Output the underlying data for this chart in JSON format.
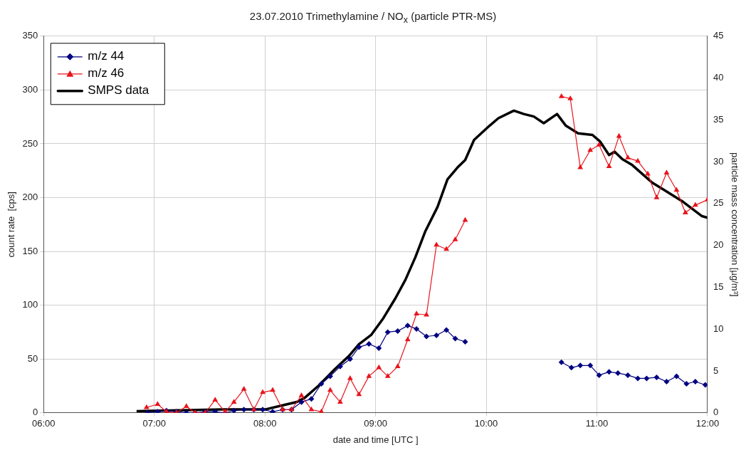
{
  "chart_data": {
    "type": "line",
    "title": "23.07.2010 Trimethylamine / NO$_{x}$ (particle PTR-MS)",
    "xlabel": "date and time [UTC ]",
    "ylabel": "count rate  [cps]",
    "y2label": "particle mass concentration [µg/m³]",
    "xlim": [
      6,
      12
    ],
    "xticks": [
      {
        "value": 6,
        "label": "06:00"
      },
      {
        "value": 7,
        "label": "07:00"
      },
      {
        "value": 8,
        "label": "08:00"
      },
      {
        "value": 9,
        "label": "09:00"
      },
      {
        "value": 10,
        "label": "10:00"
      },
      {
        "value": 11,
        "label": "11:00"
      },
      {
        "value": 12,
        "label": "12:00"
      }
    ],
    "ylim": [
      0,
      350
    ],
    "yticks": [
      0,
      50,
      100,
      150,
      200,
      250,
      300,
      350
    ],
    "y2lim": [
      0,
      45
    ],
    "y2ticks": [
      0,
      5,
      10,
      15,
      20,
      25,
      30,
      35,
      40,
      45
    ],
    "grid": true,
    "legend": "top left",
    "series": [
      {
        "name": "m/z 44",
        "color": "#000080",
        "marker": "diamond",
        "x": [
          6.94,
          7.03,
          7.11,
          7.2,
          7.29,
          7.37,
          7.46,
          7.55,
          7.64,
          7.72,
          7.81,
          7.9,
          7.98,
          8.07,
          8.16,
          8.24,
          8.33,
          8.42,
          8.51,
          8.59,
          8.68,
          8.77,
          8.85,
          8.94,
          9.03,
          9.11,
          9.2,
          9.29,
          9.37,
          9.46,
          9.55,
          9.64,
          9.72,
          9.81,
          10.2,
          10.68,
          10.77,
          10.85,
          10.94,
          11.02,
          11.11,
          11.19,
          11.28,
          11.37,
          11.45,
          11.54,
          11.63,
          11.72,
          11.81,
          11.89,
          11.98
        ],
        "values": [
          0,
          1,
          2,
          1,
          0,
          0,
          1,
          1,
          0,
          2,
          3,
          3,
          3,
          1,
          3,
          3,
          10,
          13,
          27,
          34,
          43,
          50,
          61,
          64,
          60,
          75,
          76,
          81,
          78,
          71,
          72,
          77,
          69,
          66,
          null,
          47,
          42,
          44,
          44,
          35,
          38,
          37,
          35,
          32,
          32,
          33,
          29,
          34,
          27,
          29,
          26
        ]
      },
      {
        "name": "m/z 46",
        "color": "#e8141c",
        "marker": "triangle",
        "x": [
          6.93,
          7.03,
          7.11,
          7.2,
          7.29,
          7.37,
          7.46,
          7.55,
          7.64,
          7.72,
          7.81,
          7.9,
          7.98,
          8.07,
          8.16,
          8.24,
          8.33,
          8.42,
          8.51,
          8.59,
          8.68,
          8.77,
          8.85,
          8.94,
          9.03,
          9.11,
          9.2,
          9.29,
          9.37,
          9.46,
          9.55,
          9.64,
          9.72,
          9.81,
          10.2,
          10.68,
          10.76,
          10.85,
          10.94,
          11.02,
          11.11,
          11.2,
          11.28,
          11.37,
          11.46,
          11.54,
          11.63,
          11.72,
          11.8,
          11.89,
          12.0
        ],
        "values": [
          5,
          8,
          1,
          0,
          6,
          0,
          0,
          12,
          1,
          10,
          22,
          3,
          19,
          21,
          3,
          3,
          16,
          3,
          1,
          21,
          10,
          32,
          17,
          34,
          42,
          34,
          43,
          68,
          92,
          91,
          156,
          152,
          161,
          179,
          null,
          294,
          292,
          228,
          244,
          249,
          229,
          257,
          237,
          234,
          222,
          200,
          223,
          207,
          186,
          193,
          198
        ]
      },
      {
        "name": "SMPS data",
        "color": "#000000",
        "marker": "none",
        "axis": "y2",
        "x": [
          6.84,
          7.22,
          7.62,
          8.0,
          8.16,
          8.29,
          8.36,
          8.49,
          8.63,
          8.76,
          8.85,
          8.96,
          9.07,
          9.18,
          9.27,
          9.36,
          9.45,
          9.56,
          9.65,
          9.74,
          9.81,
          9.89,
          10.03,
          10.11,
          10.25,
          10.34,
          10.43,
          10.52,
          10.64,
          10.72,
          10.83,
          10.96,
          11.03,
          11.11,
          11.16,
          11.23,
          11.32,
          11.5,
          11.61,
          11.78,
          11.95,
          12.0
        ],
        "values": [
          0.2,
          0.3,
          0.4,
          0.4,
          0.9,
          1.3,
          1.8,
          3.3,
          5.2,
          6.8,
          8.2,
          9.3,
          11.3,
          13.7,
          15.9,
          18.6,
          21.7,
          24.6,
          27.9,
          29.3,
          30.2,
          32.6,
          34.3,
          35.2,
          36.1,
          35.7,
          35.4,
          34.6,
          35.7,
          34.3,
          33.4,
          33.2,
          32.4,
          30.8,
          31.2,
          30.3,
          29.6,
          27.5,
          26.6,
          25.2,
          23.5,
          23.3
        ]
      }
    ]
  }
}
